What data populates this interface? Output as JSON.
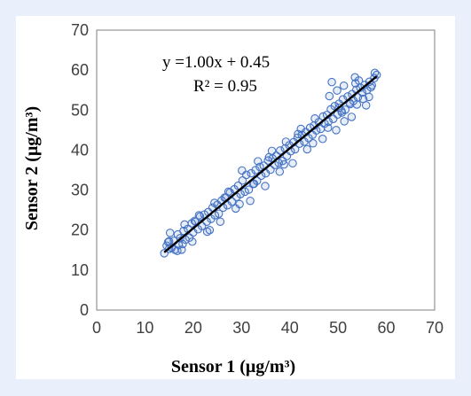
{
  "chart_data": {
    "type": "scatter",
    "xlabel": "Sensor 1 (μg/m³)",
    "ylabel": "Sensor 2 (μg/m³)",
    "xlim": [
      0,
      70
    ],
    "ylim": [
      0,
      70
    ],
    "xticks": [
      "0",
      "10",
      "20",
      "30",
      "40",
      "50",
      "60",
      "70"
    ],
    "yticks": [
      "0",
      "10",
      "20",
      "30",
      "40",
      "50",
      "60",
      "70"
    ],
    "grid": false,
    "legend": "none",
    "annotations": {
      "equation": "y =1.00x + 0.45",
      "r_squared": "R² = 0.95"
    },
    "fit_line": {
      "x": [
        14,
        58
      ],
      "y": [
        14.45,
        58.45
      ]
    },
    "series": [
      {
        "marker_color": "#4472c4",
        "points": {
          "x": [
            14,
            14.5,
            15,
            15,
            15.5,
            16,
            16.2,
            16.8,
            17,
            17.3,
            17.8,
            18,
            18.4,
            18.9,
            19.2,
            19.7,
            20,
            20.5,
            21,
            21.4,
            21.8,
            22.3,
            22.8,
            23.1,
            23.7,
            24,
            24.5,
            25,
            25.3,
            25.9,
            26.2,
            26.8,
            27.1,
            27.6,
            28,
            28.5,
            29,
            29.3,
            29.8,
            30.2,
            30.7,
            31,
            31.5,
            32,
            32.4,
            32.9,
            33.2,
            33.8,
            34.1,
            34.6,
            35,
            35.5,
            36,
            36.4,
            36.9,
            37.2,
            37.7,
            38,
            38.5,
            39,
            39.4,
            39.9,
            40.2,
            40.8,
            41.1,
            41.6,
            42,
            42.5,
            43,
            43.3,
            43.9,
            44.2,
            44.7,
            45,
            45.5,
            46,
            46.4,
            46.9,
            47.2,
            47.7,
            48,
            48.5,
            49,
            49.3,
            49.9,
            50.2,
            50.7,
            51,
            51.5,
            52,
            52.4,
            52.9,
            53.2,
            53.8,
            54.1,
            54.6,
            55,
            55.5,
            56,
            56.5,
            57,
            57.5,
            58,
            15.2,
            16.7,
            18.2,
            19.8,
            21.2,
            22.9,
            24.4,
            25.6,
            27.3,
            28.8,
            30.1,
            31.8,
            33.4,
            34.9,
            36.3,
            37.9,
            39.2,
            40.6,
            42.3,
            43.6,
            45.2,
            46.8,
            48.2,
            49.6,
            51.2,
            52.8,
            54.3,
            55.8,
            14.8,
            17.6,
            20.3,
            23.4,
            26.5,
            29.6,
            32.6,
            35.7,
            38.8,
            41.7,
            44.8,
            47.9,
            50.8,
            53.6,
            56.4,
            52.5,
            53.5,
            55.2,
            51.3,
            50.2,
            48.7,
            49.8,
            53.9,
            56.8,
            57.6
          ],
          "y": [
            14.2,
            16.1,
            15.3,
            17.2,
            15.6,
            17.3,
            15.1,
            18.9,
            16.3,
            18.0,
            16.5,
            19.8,
            17.6,
            20.3,
            18.1,
            21.7,
            19.4,
            22.1,
            20.2,
            23.4,
            21.0,
            23.9,
            22.1,
            24.5,
            22.8,
            25.6,
            23.7,
            26.3,
            24.1,
            27.4,
            25.6,
            28.1,
            26.2,
            29.4,
            27.1,
            30.2,
            28.3,
            31.1,
            29.0,
            32.4,
            29.6,
            33.8,
            30.1,
            34.2,
            31.5,
            35.0,
            32.3,
            35.8,
            33.6,
            36.1,
            34.2,
            37.4,
            35.1,
            37.9,
            36.3,
            38.6,
            36.8,
            39.9,
            37.3,
            40.4,
            38.5,
            41.2,
            39.7,
            42.0,
            40.2,
            43.1,
            41.6,
            43.8,
            42.1,
            44.5,
            43.0,
            45.6,
            43.8,
            46.1,
            44.9,
            47.0,
            45.3,
            48.4,
            46.6,
            48.8,
            47.1,
            50.2,
            47.8,
            51.0,
            48.9,
            51.6,
            49.8,
            52.7,
            50.1,
            53.4,
            51.8,
            54.0,
            52.3,
            55.1,
            53.2,
            55.6,
            54.4,
            56.3,
            55.0,
            57.1,
            56.2,
            58.0,
            58.8,
            19.3,
            14.8,
            21.4,
            17.1,
            23.7,
            19.6,
            26.8,
            22.1,
            29.6,
            25.4,
            34.9,
            27.3,
            37.2,
            31.0,
            39.8,
            34.6,
            42.1,
            36.7,
            45.3,
            40.2,
            47.9,
            42.8,
            53.5,
            45.0,
            56.1,
            48.3,
            57.4,
            51.2,
            17.0,
            15.1,
            22.3,
            20.0,
            28.1,
            26.5,
            31.6,
            38.2,
            36.4,
            44.0,
            41.7,
            45.6,
            49.4,
            56.7,
            53.3,
            51.5,
            58.2,
            52.8,
            47.2,
            50.6,
            57.0,
            54.9,
            51.4,
            55.7,
            59.3
          ]
        }
      }
    ]
  }
}
